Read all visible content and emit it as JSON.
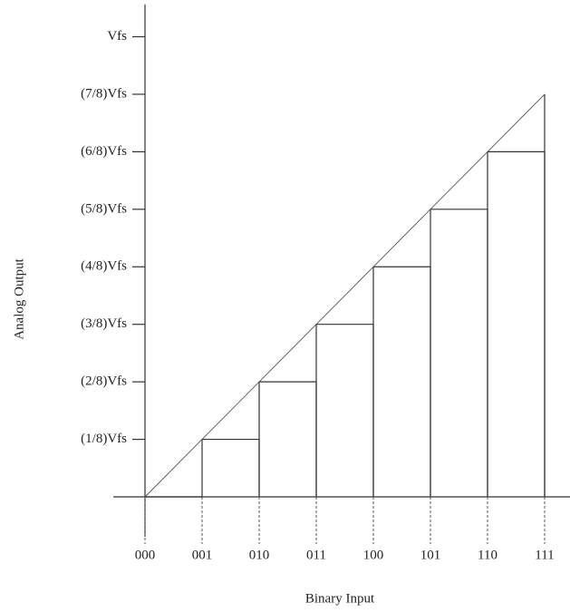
{
  "chart_data": {
    "type": "step",
    "x_label": "Binary Input",
    "y_label": "Analog Output",
    "categories": [
      "000",
      "001",
      "010",
      "011",
      "100",
      "101",
      "110",
      "111"
    ],
    "values": [
      0,
      0.125,
      0.25,
      0.375,
      0.5,
      0.625,
      0.75,
      0.875
    ],
    "ylim": [
      0,
      1.07
    ],
    "yticks": [
      {
        "value": 0.125,
        "label": "(1/8)Vfs"
      },
      {
        "value": 0.25,
        "label": "(2/8)Vfs"
      },
      {
        "value": 0.375,
        "label": "(3/8)Vfs"
      },
      {
        "value": 0.5,
        "label": "(4/8)Vfs"
      },
      {
        "value": 0.625,
        "label": "(5/8)Vfs"
      },
      {
        "value": 0.75,
        "label": "(6/8)Vfs"
      },
      {
        "value": 0.875,
        "label": "(7/8)Vfs"
      },
      {
        "value": 1,
        "label": "Vfs"
      }
    ],
    "color": "#333333"
  }
}
